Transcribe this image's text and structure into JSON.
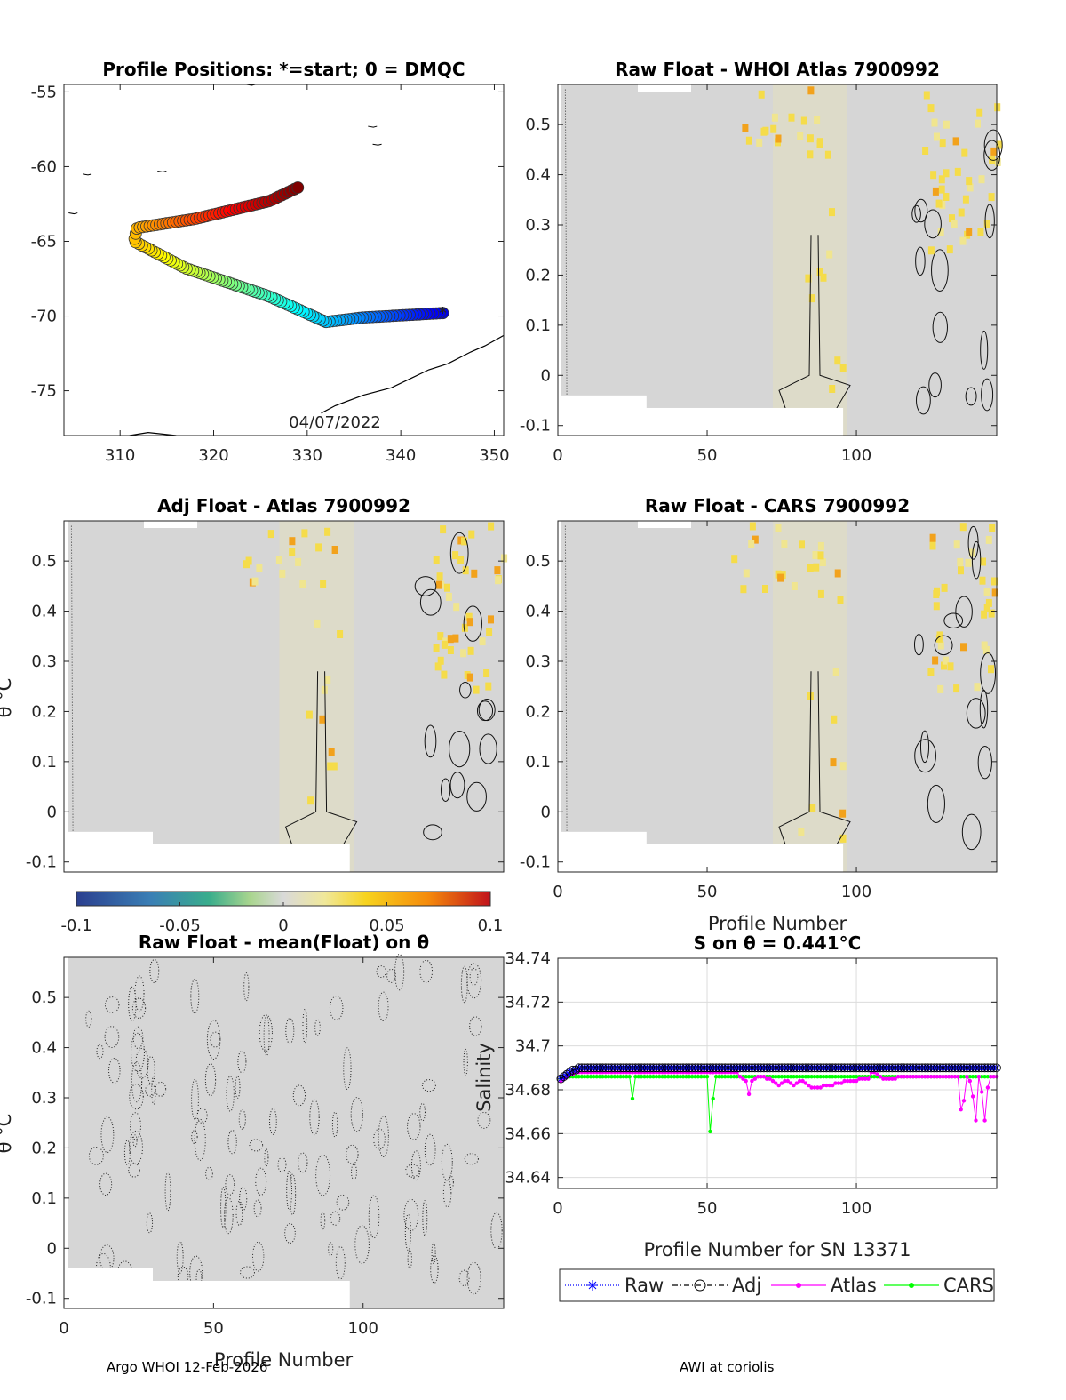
{
  "figure": {
    "footer_left": "Argo WHOI 12-Feb-2026",
    "footer_right": "AWI at coriolis"
  },
  "chart_data": [
    {
      "id": "positions",
      "type": "scatter",
      "title": "Profile Positions: *=start; 0 = DMQC",
      "xlabel": "",
      "ylabel": "",
      "xlim": [
        304,
        351
      ],
      "ylim": [
        -78,
        -54.5
      ],
      "xticks": [
        310,
        320,
        330,
        340,
        350
      ],
      "yticks": [
        -55,
        -60,
        -65,
        -70,
        -75
      ],
      "annotation": "04/07/2022",
      "start_marker": [
        344.5,
        -69.8
      ],
      "track_waypoints": [
        [
          344.5,
          -69.8
        ],
        [
          336,
          -70.1
        ],
        [
          332,
          -70.4
        ],
        [
          326,
          -68.7
        ],
        [
          317,
          -66.8
        ],
        [
          311.5,
          -65.0
        ],
        [
          311.8,
          -64.1
        ],
        [
          318,
          -63.5
        ],
        [
          326,
          -62.3
        ],
        [
          329,
          -61.4
        ]
      ],
      "colormap": "jet"
    },
    {
      "id": "raw-whoi",
      "type": "heatmap",
      "title": "Raw Float - WHOI Atlas  7900992",
      "xlabel": "",
      "ylabel": "",
      "xlim": [
        0,
        147
      ],
      "ylim": [
        -0.12,
        0.58
      ],
      "xticks": [
        0,
        50,
        100
      ],
      "yticks": [
        0.5,
        0.4,
        0.3,
        0.2,
        0.1,
        0,
        -0.1
      ]
    },
    {
      "id": "adj-atlas",
      "type": "heatmap",
      "title": "Adj Float - Atlas  7900992",
      "xlabel": "",
      "ylabel": "θ °C",
      "xlim": [
        0,
        147
      ],
      "ylim": [
        -0.12,
        0.58
      ],
      "xticks": [],
      "yticks": [
        0.5,
        0.4,
        0.3,
        0.2,
        0.1,
        0,
        -0.1
      ]
    },
    {
      "id": "raw-cars",
      "type": "heatmap",
      "title": "Raw Float - CARS  7900992",
      "xlabel": "Profile Number",
      "ylabel": "",
      "xlim": [
        0,
        147
      ],
      "ylim": [
        -0.12,
        0.58
      ],
      "xticks": [
        0,
        50,
        100
      ],
      "yticks": [
        0.5,
        0.4,
        0.3,
        0.2,
        0.1,
        0,
        -0.1
      ]
    },
    {
      "id": "colorbar",
      "type": "heatmap",
      "title": "",
      "range": [
        -0.1,
        0.1
      ],
      "ticks": [
        "-0.1",
        "-0.05",
        "0",
        "0.05",
        "0.1"
      ]
    },
    {
      "id": "raw-mean",
      "type": "heatmap",
      "title": "Raw Float - mean(Float) on θ",
      "xlabel": "Profile Number",
      "ylabel": "θ °C",
      "xlim": [
        0,
        147
      ],
      "ylim": [
        -0.12,
        0.58
      ],
      "xticks": [
        0,
        50,
        100
      ],
      "yticks": [
        0.5,
        0.4,
        0.3,
        0.2,
        0.1,
        0,
        -0.1
      ]
    },
    {
      "id": "salinity",
      "type": "line",
      "title": "S on θ = 0.441°C",
      "xlabel": "Profile Number for SN 13371",
      "ylabel": "Salinity",
      "xlim": [
        0,
        147
      ],
      "ylim": [
        34.635,
        34.74
      ],
      "xticks": [
        0,
        50,
        100
      ],
      "yticks": [
        34.74,
        34.72,
        34.7,
        34.68,
        34.66,
        34.64
      ],
      "grid": true,
      "legend_position": "bottom",
      "series": [
        {
          "name": "Raw",
          "color": "#0000ff",
          "style": "dotted-asterisk",
          "values": [
            34.685,
            34.686,
            34.687,
            34.688,
            34.689,
            34.689,
            34.69,
            34.69,
            34.69,
            34.69,
            34.69,
            34.69,
            34.69,
            34.69,
            34.69,
            34.69,
            34.69,
            34.69,
            34.69,
            34.69,
            34.69,
            34.69,
            34.69,
            34.69,
            34.69,
            34.69,
            34.69,
            34.69,
            34.69,
            34.69,
            34.69,
            34.69,
            34.69,
            34.69,
            34.69,
            34.69,
            34.69,
            34.69,
            34.69,
            34.69,
            34.69,
            34.69,
            34.69,
            34.69,
            34.69,
            34.69,
            34.69,
            34.69,
            34.69,
            34.69,
            34.69,
            34.69,
            34.69,
            34.69,
            34.69,
            34.69,
            34.69,
            34.69,
            34.69,
            34.69,
            34.69,
            34.69,
            34.69,
            34.69,
            34.69,
            34.69,
            34.69,
            34.69,
            34.69,
            34.69,
            34.69,
            34.69,
            34.69,
            34.69,
            34.69,
            34.69,
            34.69,
            34.69,
            34.69,
            34.69,
            34.69,
            34.69,
            34.69,
            34.69,
            34.69,
            34.69,
            34.69,
            34.69,
            34.69,
            34.69,
            34.69,
            34.69,
            34.69,
            34.69,
            34.69,
            34.69,
            34.69,
            34.69,
            34.69,
            34.69,
            34.69,
            34.69,
            34.69,
            34.69,
            34.69,
            34.69,
            34.69,
            34.69,
            34.69,
            34.69,
            34.69,
            34.69,
            34.69,
            34.69,
            34.69,
            34.69,
            34.69,
            34.69,
            34.69,
            34.69,
            34.69,
            34.69,
            34.69,
            34.69,
            34.69,
            34.69,
            34.69,
            34.69,
            34.69,
            34.69,
            34.69,
            34.69,
            34.69,
            34.69,
            34.69,
            34.69,
            34.69,
            34.69,
            34.69,
            34.69,
            34.69,
            34.69,
            34.69,
            34.69,
            34.69,
            34.69,
            34.69
          ]
        },
        {
          "name": "Adj",
          "color": "#000000",
          "style": "dashdot-circle",
          "values": [
            34.685,
            34.686,
            34.687,
            34.688,
            34.689,
            34.689,
            34.69,
            34.69,
            34.69,
            34.69,
            34.69,
            34.69,
            34.69,
            34.69,
            34.69,
            34.69,
            34.69,
            34.69,
            34.69,
            34.69,
            34.69,
            34.69,
            34.69,
            34.69,
            34.69,
            34.69,
            34.69,
            34.69,
            34.69,
            34.69,
            34.69,
            34.69,
            34.69,
            34.69,
            34.69,
            34.69,
            34.69,
            34.69,
            34.69,
            34.69,
            34.69,
            34.69,
            34.69,
            34.69,
            34.69,
            34.69,
            34.69,
            34.69,
            34.69,
            34.69,
            34.69,
            34.69,
            34.69,
            34.69,
            34.69,
            34.69,
            34.69,
            34.69,
            34.69,
            34.69,
            34.69,
            34.69,
            34.69,
            34.69,
            34.69,
            34.69,
            34.69,
            34.69,
            34.69,
            34.69,
            34.69,
            34.69,
            34.69,
            34.69,
            34.69,
            34.69,
            34.69,
            34.69,
            34.69,
            34.69,
            34.69,
            34.69,
            34.69,
            34.69,
            34.69,
            34.69,
            34.69,
            34.69,
            34.69,
            34.69,
            34.69,
            34.69,
            34.69,
            34.69,
            34.69,
            34.69,
            34.69,
            34.69,
            34.69,
            34.69,
            34.69,
            34.69,
            34.69,
            34.69,
            34.69,
            34.69,
            34.69,
            34.69,
            34.69,
            34.69,
            34.69,
            34.69,
            34.69,
            34.69,
            34.69,
            34.69,
            34.69,
            34.69,
            34.69,
            34.69,
            34.69,
            34.69,
            34.69,
            34.69,
            34.69,
            34.69,
            34.69,
            34.69,
            34.69,
            34.69,
            34.69,
            34.69,
            34.69,
            34.69,
            34.69,
            34.69,
            34.69,
            34.69,
            34.69,
            34.69,
            34.69,
            34.69,
            34.69,
            34.69,
            34.69,
            34.69,
            34.69
          ]
        },
        {
          "name": "Atlas",
          "color": "#ff00ff",
          "style": "solid-dot",
          "values": [
            34.684,
            34.685,
            34.686,
            34.687,
            34.687,
            34.688,
            34.688,
            34.688,
            34.688,
            34.688,
            34.688,
            34.688,
            34.688,
            34.688,
            34.688,
            34.688,
            34.688,
            34.688,
            34.688,
            34.688,
            34.688,
            34.688,
            34.688,
            34.688,
            34.688,
            34.688,
            34.688,
            34.688,
            34.688,
            34.688,
            34.688,
            34.688,
            34.688,
            34.688,
            34.688,
            34.688,
            34.688,
            34.688,
            34.688,
            34.688,
            34.688,
            34.688,
            34.688,
            34.688,
            34.688,
            34.688,
            34.688,
            34.688,
            34.688,
            34.688,
            34.688,
            34.688,
            34.688,
            34.688,
            34.688,
            34.688,
            34.688,
            34.688,
            34.688,
            34.688,
            34.686,
            34.685,
            34.684,
            34.678,
            34.684,
            34.685,
            34.686,
            34.686,
            34.686,
            34.685,
            34.685,
            34.684,
            34.683,
            34.682,
            34.683,
            34.684,
            34.684,
            34.683,
            34.682,
            34.683,
            34.684,
            34.684,
            34.683,
            34.682,
            34.681,
            34.681,
            34.681,
            34.681,
            34.682,
            34.682,
            34.682,
            34.682,
            34.683,
            34.683,
            34.683,
            34.684,
            34.684,
            34.684,
            34.684,
            34.684,
            34.685,
            34.685,
            34.685,
            34.685,
            34.688,
            34.688,
            34.687,
            34.686,
            34.685,
            34.685,
            34.685,
            34.685,
            34.685,
            34.686,
            34.686,
            34.686,
            34.686,
            34.686,
            34.686,
            34.686,
            34.686,
            34.686,
            34.686,
            34.686,
            34.686,
            34.686,
            34.686,
            34.686,
            34.686,
            34.686,
            34.686,
            34.686,
            34.686,
            34.686,
            34.671,
            34.675,
            34.686,
            34.684,
            34.677,
            34.666,
            34.686,
            34.679,
            34.666,
            34.681,
            34.686,
            34.686,
            34.686
          ]
        },
        {
          "name": "CARS",
          "color": "#00ff00",
          "style": "solid-dot",
          "values": [
            34.685,
            34.685,
            34.686,
            34.686,
            34.686,
            34.686,
            34.686,
            34.686,
            34.686,
            34.686,
            34.686,
            34.686,
            34.686,
            34.686,
            34.686,
            34.686,
            34.686,
            34.686,
            34.686,
            34.686,
            34.686,
            34.686,
            34.686,
            34.686,
            34.676,
            34.686,
            34.686,
            34.686,
            34.686,
            34.686,
            34.686,
            34.686,
            34.686,
            34.686,
            34.686,
            34.686,
            34.686,
            34.686,
            34.686,
            34.686,
            34.686,
            34.686,
            34.686,
            34.686,
            34.686,
            34.686,
            34.686,
            34.686,
            34.686,
            34.686,
            34.661,
            34.676,
            34.686,
            34.686,
            34.686,
            34.686,
            34.686,
            34.686,
            34.686,
            34.686,
            34.686,
            34.686,
            34.686,
            34.686,
            34.686,
            34.686,
            34.686,
            34.686,
            34.686,
            34.686,
            34.686,
            34.686,
            34.686,
            34.686,
            34.686,
            34.686,
            34.686,
            34.686,
            34.686,
            34.686,
            34.686,
            34.686,
            34.686,
            34.686,
            34.686,
            34.686,
            34.686,
            34.686,
            34.686,
            34.686,
            34.686,
            34.686,
            34.686,
            34.686,
            34.686,
            34.686,
            34.686,
            34.686,
            34.686,
            34.686,
            34.686,
            34.686,
            34.686,
            34.686,
            34.686,
            34.686,
            34.686,
            34.686,
            34.686,
            34.686,
            34.686,
            34.686,
            34.686,
            34.686,
            34.686,
            34.686,
            34.686,
            34.686,
            34.686,
            34.686,
            34.686,
            34.686,
            34.686,
            34.686,
            34.686,
            34.686,
            34.686,
            34.686,
            34.686,
            34.686,
            34.686,
            34.686,
            34.686,
            34.686,
            34.686,
            34.686,
            34.686,
            34.686,
            34.686,
            34.686,
            34.686,
            34.686,
            34.686,
            34.686,
            34.686,
            34.686,
            34.686
          ]
        }
      ]
    }
  ]
}
